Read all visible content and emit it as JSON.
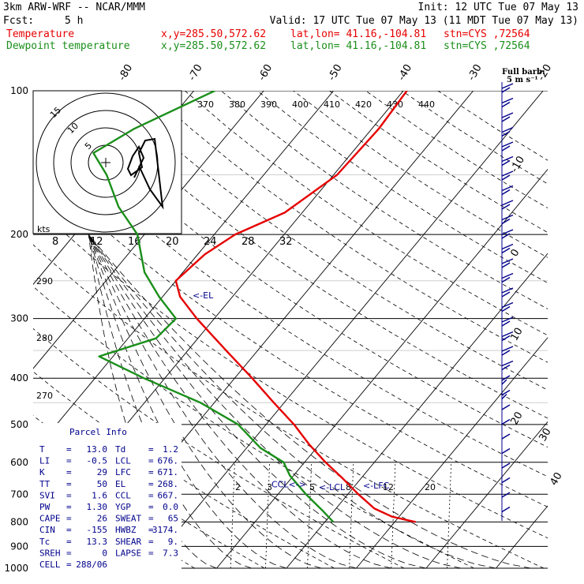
{
  "header": {
    "model": "3km ARW-WRF -- NCAR/MMM",
    "init": "Init: 12 UTC Tue 07 May 13",
    "fcst_label": "Fcst:",
    "fcst_value": "5 h",
    "valid": "Valid: 17 UTC Tue 07 May 13 (11 MDT Tue 07 May 13)",
    "temp_row": {
      "name": "Temperature",
      "xy": "x,y=285.50,572.62",
      "latlon": "lat,lon= 41.16,-104.81",
      "stn": "stn=CYS ,72564"
    },
    "dew_row": {
      "name": "Dewpoint temperature",
      "xy": "x,y=285.50,572.62",
      "latlon": "lat,lon= 41.16,-104.81",
      "stn": "stn=CYS ,72564"
    },
    "barb_legend": "Full barb:",
    "barb_value": "5 m s⁻¹"
  },
  "colors": {
    "temperature": "#e60000",
    "dewpoint": "#1a8f1a",
    "barbs": "#00008b",
    "grid": "#000000"
  },
  "chart_data": {
    "type": "line",
    "diagram": "skew-T log-p",
    "y_axis": {
      "unit": "hPa",
      "scale": "log",
      "range": [
        1000,
        100
      ],
      "ticks": [
        100,
        200,
        300,
        400,
        500,
        600,
        700,
        800,
        900,
        1000
      ]
    },
    "isotherm_labels": [
      "-80",
      "-70",
      "-60",
      "-50",
      "-40",
      "-30",
      "-20",
      "-10",
      "0",
      "10",
      "20",
      "30",
      "40"
    ],
    "theta_e_labels": [
      "370",
      "380",
      "390",
      "400",
      "410",
      "420",
      "430",
      "440",
      "290",
      "280",
      "270"
    ],
    "mixing_ratio_labels": [
      "2",
      "3",
      "5",
      "8",
      "12",
      "20"
    ],
    "series": [
      {
        "name": "Temperature",
        "color": "#e60000",
        "p": [
          800,
          780,
          750,
          700,
          650,
          600,
          550,
          500,
          450,
          400,
          350,
          300,
          270,
          250,
          220,
          200,
          180,
          150,
          120,
          100
        ],
        "t": [
          13.0,
          9.0,
          5.5,
          1.5,
          -2.5,
          -7.0,
          -11.5,
          -16.0,
          -21.5,
          -27.5,
          -34.5,
          -42.5,
          -47.5,
          -50.0,
          -49.0,
          -47.0,
          -42.5,
          -39.5,
          -39.0,
          -39.5
        ]
      },
      {
        "name": "Dewpoint temperature",
        "color": "#1a8f1a",
        "p": [
          800,
          760,
          700,
          640,
          600,
          560,
          500,
          450,
          400,
          360,
          330,
          300,
          270,
          240,
          200,
          175,
          150,
          135,
          120,
          100
        ],
        "t": [
          1.2,
          -1.5,
          -6.0,
          -10.5,
          -13.0,
          -18.0,
          -24.0,
          -32.0,
          -43.0,
          -52.0,
          -46.0,
          -45.5,
          -50.5,
          -55.5,
          -61.0,
          -67.0,
          -72.5,
          -77.0,
          -74.0,
          -67.0
        ]
      }
    ],
    "levels": [
      {
        "label": "<-EL",
        "p": 268
      },
      {
        "label": "CCL<->",
        "p": 667
      },
      {
        "label": "<-LCL",
        "p": 676
      },
      {
        "label": "<-LFC",
        "p": 671
      }
    ],
    "wind_barbs": {
      "count": 30,
      "unit": "m/s"
    }
  },
  "hodograph": {
    "units_label": "kts",
    "ring_labels": [
      "5",
      "10",
      "15"
    ],
    "axis_labels": [
      "8",
      "12",
      "16",
      "20",
      "24",
      "28",
      "32"
    ]
  },
  "parcel_info": {
    "title": "Parcel Info",
    "rows": [
      [
        "T",
        "13.0",
        "Td",
        "1.2"
      ],
      [
        "LI",
        "-0.5",
        "LCL",
        "676."
      ],
      [
        "K",
        "29",
        "LFC",
        "671."
      ],
      [
        "TT",
        "50",
        "EL",
        "268."
      ],
      [
        "SVI",
        "1.6",
        "CCL",
        "667."
      ],
      [
        "PW",
        "1.30",
        "YGP",
        "0.0"
      ],
      [
        "CAPE",
        "26",
        "SWEAT",
        "65"
      ],
      [
        "CIN",
        "-155",
        "HWBZ",
        "3174."
      ],
      [
        "Tc",
        "13.3",
        "SHEAR",
        "9."
      ],
      [
        "SREH",
        "0",
        "LAPSE",
        "7.3"
      ],
      [
        "CELL",
        "288/06",
        "",
        ""
      ]
    ]
  }
}
